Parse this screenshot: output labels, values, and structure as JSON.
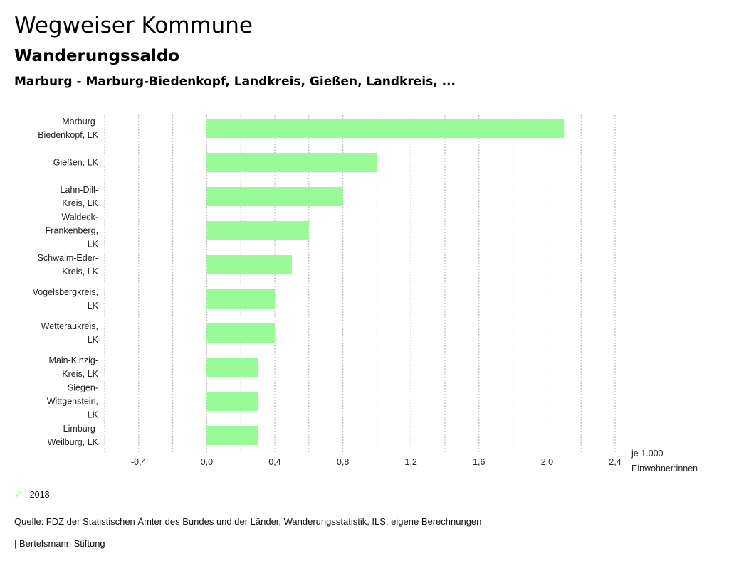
{
  "header": {
    "title": "Wegweiser Kommune",
    "subtitle": "Wanderungssaldo",
    "region": "Marburg - Marburg-Biedenkopf, Landkreis, Gießen, Landkreis, ..."
  },
  "chart_data": {
    "type": "bar",
    "orientation": "horizontal",
    "title": "Wanderungssaldo",
    "xlabel": "je 1.000 Einwohner:innen",
    "unit_lines": [
      "je 1.000",
      "Einwohner:innen"
    ],
    "ylabel": "",
    "xlim": [
      -0.6,
      2.4
    ],
    "grid": true,
    "tick_values": [
      -0.4,
      0.0,
      0.4,
      0.8,
      1.2,
      1.6,
      2.0,
      2.4
    ],
    "tick_labels": [
      "-0,4",
      "0,0",
      "0,4",
      "0,8",
      "1,2",
      "1,6",
      "2,0",
      "2,4"
    ],
    "categories": [
      [
        "Marburg-",
        "Biedenkopf, LK"
      ],
      [
        "Gießen, LK"
      ],
      [
        "Lahn-Dill-",
        "Kreis, LK"
      ],
      [
        "Waldeck-",
        "Frankenberg,",
        "LK"
      ],
      [
        "Schwalm-Eder-",
        "Kreis, LK"
      ],
      [
        "Vogelsbergkreis,",
        "LK"
      ],
      [
        "Wetteraukreis,",
        "LK"
      ],
      [
        "Main-Kinzig-",
        "Kreis, LK"
      ],
      [
        "Siegen-",
        "Wittgenstein,",
        "LK"
      ],
      [
        "Limburg-",
        "Weilburg, LK"
      ]
    ],
    "series": [
      {
        "name": "2018",
        "color": "#98fb98",
        "values": [
          2.1,
          1.0,
          0.8,
          0.6,
          0.5,
          0.4,
          0.4,
          0.3,
          0.3,
          0.3
        ]
      }
    ],
    "legend": {
      "position": "bottom-left",
      "entries": [
        "2018"
      ]
    }
  },
  "footer": {
    "legend_label": "2018",
    "source": "Quelle: FDZ der Statistischen Ämter des Bundes und der Länder, Wanderungsstatistik, ILS, eigene Berechnungen",
    "brand": "| Bertelsmann Stiftung"
  }
}
